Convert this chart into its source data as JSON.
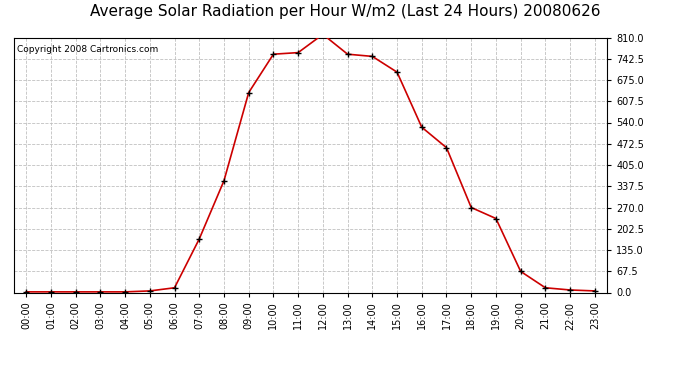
{
  "title": "Average Solar Radiation per Hour W/m2 (Last 24 Hours) 20080626",
  "copyright": "Copyright 2008 Cartronics.com",
  "hours": [
    "00:00",
    "01:00",
    "02:00",
    "03:00",
    "04:00",
    "05:00",
    "06:00",
    "07:00",
    "08:00",
    "09:00",
    "10:00",
    "11:00",
    "12:00",
    "13:00",
    "14:00",
    "15:00",
    "16:00",
    "17:00",
    "18:00",
    "19:00",
    "20:00",
    "21:00",
    "22:00",
    "23:00"
  ],
  "values": [
    2,
    2,
    2,
    2,
    2,
    5,
    15,
    170,
    355,
    635,
    757,
    762,
    820,
    757,
    750,
    700,
    525,
    460,
    270,
    235,
    67,
    15,
    8,
    5
  ],
  "line_color": "#cc0000",
  "marker_color": "#000000",
  "bg_color": "#ffffff",
  "grid_color": "#c0c0c0",
  "ylim_min": 0.0,
  "ylim_max": 810.0,
  "yticks": [
    0.0,
    67.5,
    135.0,
    202.5,
    270.0,
    337.5,
    405.0,
    472.5,
    540.0,
    607.5,
    675.0,
    742.5,
    810.0
  ],
  "title_fontsize": 11,
  "copyright_fontsize": 6.5,
  "tick_fontsize": 7,
  "fig_width": 6.9,
  "fig_height": 3.75,
  "dpi": 100
}
